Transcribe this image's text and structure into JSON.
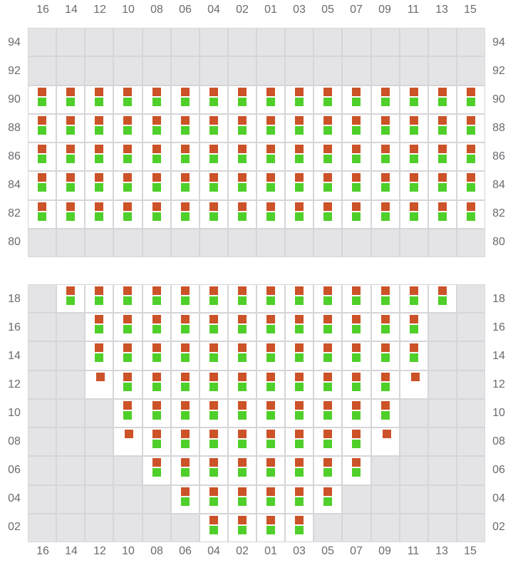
{
  "columns": [
    "16",
    "14",
    "12",
    "10",
    "08",
    "06",
    "04",
    "02",
    "01",
    "03",
    "05",
    "07",
    "09",
    "11",
    "13",
    "15"
  ],
  "colors": {
    "top_marker": "#cc5228",
    "bottom_marker": "#4fcf2a",
    "empty_cell": "#e4e4e7",
    "active_cell": "#ffffff"
  },
  "legend_states": {
    "E": "empty",
    "B": "both markers",
    "O": "top marker only"
  },
  "panels": [
    {
      "rows": [
        {
          "label": "94",
          "cells": "EEEEEEEEEEEEEEEE"
        },
        {
          "label": "92",
          "cells": "EEEEEEEEEEEEEEEE"
        },
        {
          "label": "90",
          "cells": "BBBBBBBBBBBBBBBB"
        },
        {
          "label": "88",
          "cells": "BBBBBBBBBBBBBBBB"
        },
        {
          "label": "86",
          "cells": "BBBBBBBBBBBBBBBB"
        },
        {
          "label": "84",
          "cells": "BBBBBBBBBBBBBBBB"
        },
        {
          "label": "82",
          "cells": "BBBBBBBBBBBBBBBB"
        },
        {
          "label": "80",
          "cells": "EEEEEEEEEEEEEEEE"
        }
      ]
    },
    {
      "rows": [
        {
          "label": "18",
          "cells": "EBBBBBBBBBBBBBBE"
        },
        {
          "label": "16",
          "cells": "EEBBBBBBBBBBBBEE"
        },
        {
          "label": "14",
          "cells": "EEBBBBBBBBBBBBEE"
        },
        {
          "label": "12",
          "cells": "EEOBBBBBBBBBBOEE"
        },
        {
          "label": "10",
          "cells": "EEEBBBBBBBBBBEEE"
        },
        {
          "label": "08",
          "cells": "EEEOBBBBBBBBOEEE"
        },
        {
          "label": "06",
          "cells": "EEEEBBBBBBBBEEEE"
        },
        {
          "label": "04",
          "cells": "EEEEEBBBBBBEEEEE"
        },
        {
          "label": "02",
          "cells": "EEEEEEBBBBEEEEEE"
        }
      ]
    }
  ]
}
